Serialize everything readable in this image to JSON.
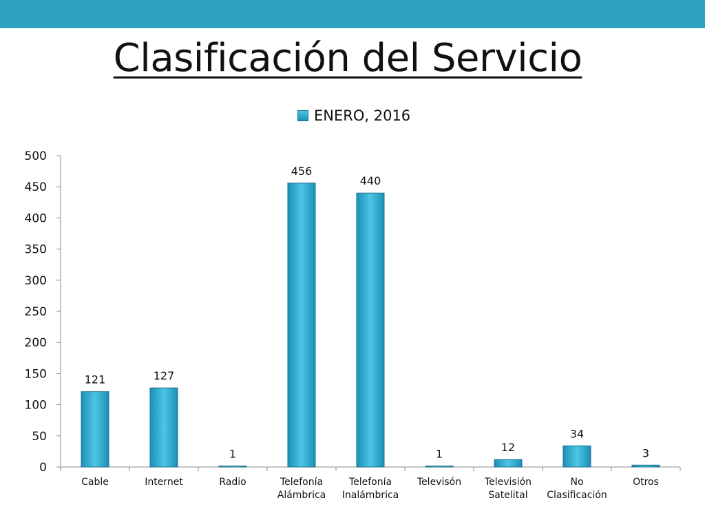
{
  "slide": {
    "title": "Clasificación del Servicio"
  },
  "colors": {
    "top_band": "#2ea3bf",
    "bar_light": "#4cc6e6",
    "bar_dark": "#1a8fb6",
    "bar_border": "#1f6f89"
  },
  "chart_data": {
    "type": "bar",
    "categories": [
      "Cable",
      "Internet",
      "Radio",
      "Telefonía Alámbrica",
      "Telefonía Inalámbrica",
      "Televisón",
      "Televisión Satelital",
      "No Clasificación",
      "Otros"
    ],
    "category_lines": [
      [
        "Cable"
      ],
      [
        "Internet"
      ],
      [
        "Radio"
      ],
      [
        "Telefonía",
        "Alámbrica"
      ],
      [
        "Telefonía",
        "Inalámbrica"
      ],
      [
        "Televisón"
      ],
      [
        "Televisión",
        "Satelital"
      ],
      [
        "No",
        "Clasificación"
      ],
      [
        "Otros"
      ]
    ],
    "series": [
      {
        "name": "ENERO, 2016",
        "values": [
          121,
          127,
          1,
          456,
          440,
          1,
          12,
          34,
          3
        ]
      }
    ],
    "ylim": [
      0,
      500
    ],
    "yticks": [
      0,
      50,
      100,
      150,
      200,
      250,
      300,
      350,
      400,
      450,
      500
    ],
    "grid": false,
    "legend_position": "top-center",
    "data_labels": true
  }
}
